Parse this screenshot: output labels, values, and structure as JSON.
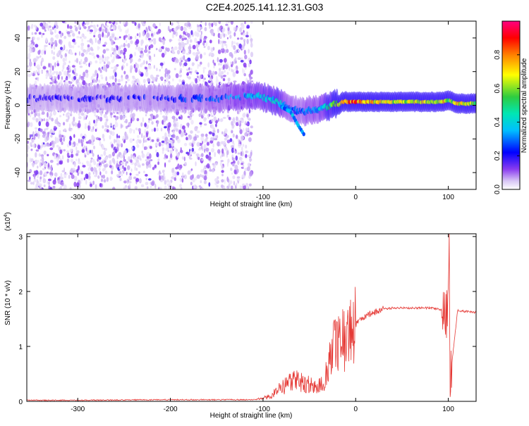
{
  "figure": {
    "title": "C2E4.2025.141.12.31.G03"
  },
  "colors": {
    "snr_line": "#e53935",
    "axis": "#000000",
    "colormap": [
      "#ffffff",
      "#d7c8f3",
      "#a070e0",
      "#5a00e0",
      "#0000ff",
      "#00bfff",
      "#00e6b4",
      "#2ecc40",
      "#ffff00",
      "#ff8000",
      "#ff0000",
      "#ff0080"
    ]
  },
  "chart_data": [
    {
      "type": "heatmap",
      "title": "C2E4.2025.141.12.31.G03",
      "xlabel": "Height of straight line (km)",
      "ylabel": "Frequency (Hz)",
      "xlim": [
        -355,
        130
      ],
      "ylim": [
        -50,
        50
      ],
      "xticks": [
        -300,
        -200,
        -100,
        0,
        100
      ],
      "yticks": [
        -40,
        -20,
        0,
        20,
        40
      ],
      "colorbar": {
        "label": "Normalized spectral amplitude",
        "range": [
          0.0,
          1.0
        ],
        "ticks": [
          0.0,
          0.2,
          0.4,
          0.6,
          0.8
        ],
        "tick_labels": [
          "0.0",
          "0.2",
          "0.4",
          "0.6",
          "0.8"
        ]
      },
      "noise_region": {
        "x": [
          -355,
          -112
        ],
        "amplitude_range": [
          0.02,
          0.12
        ]
      },
      "signal_ridge": {
        "x": [
          -355,
          -300,
          -250,
          -200,
          -150,
          -120,
          -100,
          -90,
          -80,
          -70,
          -60,
          -50,
          -40,
          -30,
          -20,
          -10,
          0,
          20,
          40,
          60,
          80,
          95,
          100,
          110,
          130
        ],
        "frequency": [
          4,
          4,
          4,
          4,
          4,
          5,
          5,
          3,
          1,
          -2,
          -4,
          -3,
          -2,
          -1,
          1,
          2,
          2,
          2,
          2,
          2,
          2,
          2,
          3,
          1,
          1
        ],
        "amplitude": [
          0.2,
          0.22,
          0.22,
          0.25,
          0.3,
          0.38,
          0.4,
          0.45,
          0.42,
          0.3,
          0.28,
          0.35,
          0.38,
          0.5,
          0.7,
          0.85,
          0.9,
          0.78,
          0.7,
          0.72,
          0.75,
          0.8,
          0.6,
          0.8,
          0.6
        ]
      },
      "side_branch": {
        "x": [
          -80,
          -70,
          -62,
          -55
        ],
        "frequency": [
          -1,
          -4,
          -12,
          -18
        ]
      }
    },
    {
      "type": "line",
      "xlabel": "Height of straight line (km)",
      "ylabel": "SNR (10 * v/v)",
      "y_multiplier": "(x10^4)",
      "xlim": [
        -355,
        130
      ],
      "ylim": [
        0,
        3.05
      ],
      "xticks": [
        -300,
        -200,
        -100,
        0,
        100
      ],
      "yticks": [
        0,
        1,
        2,
        3
      ],
      "series": [
        {
          "x": [
            -355,
            -300,
            -200,
            -110,
            -100,
            -90,
            -80,
            -70,
            -60,
            -50,
            -45,
            -35,
            -30,
            -25,
            -20,
            -15,
            -10,
            0,
            10,
            20,
            30,
            40,
            60,
            80,
            90,
            95,
            97,
            100,
            101,
            102,
            110,
            130
          ],
          "y": [
            0.02,
            0.02,
            0.03,
            0.03,
            0.05,
            0.12,
            0.25,
            0.35,
            0.38,
            0.32,
            0.25,
            0.3,
            0.6,
            0.9,
            1.05,
            1.15,
            1.2,
            1.4,
            1.55,
            1.62,
            1.68,
            1.7,
            1.7,
            1.7,
            1.68,
            1.65,
            1.5,
            1.7,
            3.0,
            0.4,
            1.65,
            1.62
          ]
        }
      ]
    }
  ]
}
